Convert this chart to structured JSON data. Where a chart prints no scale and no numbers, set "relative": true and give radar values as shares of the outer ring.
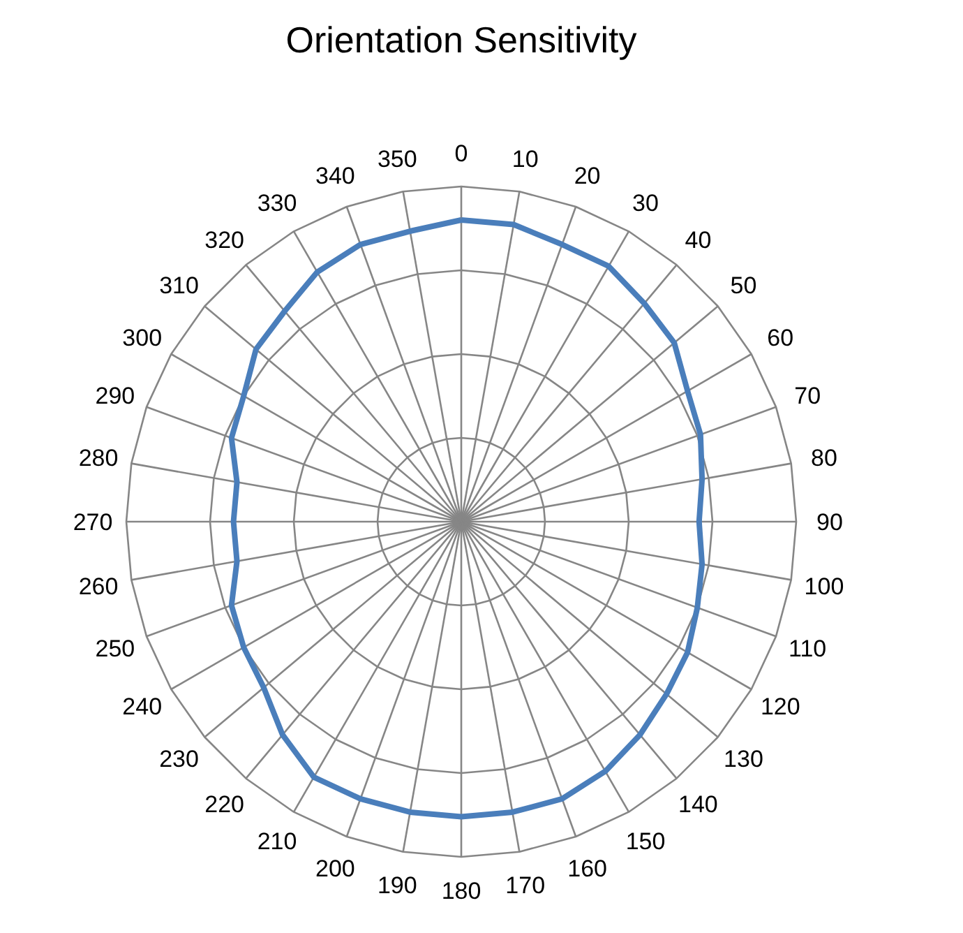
{
  "chart_data": {
    "type": "radar",
    "title": "Orientation Sensitivity",
    "relative": true,
    "grid": true,
    "categories": [
      "0",
      "10",
      "20",
      "30",
      "40",
      "50",
      "60",
      "70",
      "80",
      "90",
      "100",
      "110",
      "120",
      "130",
      "140",
      "150",
      "160",
      "170",
      "180",
      "190",
      "200",
      "210",
      "220",
      "230",
      "240",
      "250",
      "260",
      "270",
      "280",
      "290",
      "300",
      "310",
      "320",
      "330",
      "340",
      "350"
    ],
    "series": [
      {
        "color": "#4a7ebb",
        "values": [
          0.9,
          0.9,
          0.88,
          0.88,
          0.85,
          0.83,
          0.78,
          0.76,
          0.73,
          0.71,
          0.73,
          0.75,
          0.78,
          0.8,
          0.83,
          0.86,
          0.88,
          0.88,
          0.88,
          0.88,
          0.88,
          0.88,
          0.83,
          0.77,
          0.75,
          0.73,
          0.68,
          0.68,
          0.68,
          0.73,
          0.75,
          0.8,
          0.82,
          0.86,
          0.88,
          0.88
        ]
      }
    ]
  }
}
